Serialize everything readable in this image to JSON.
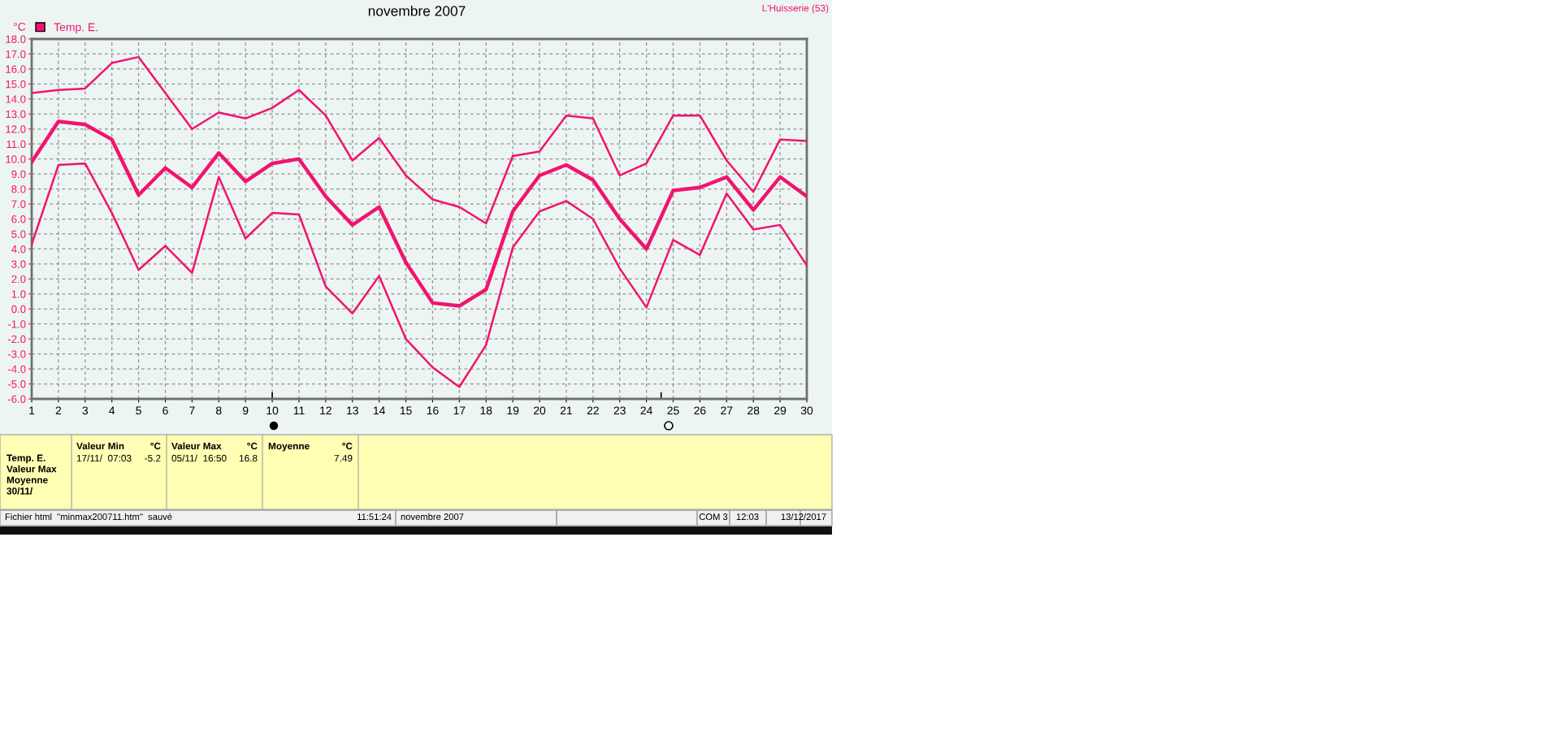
{
  "chart_data": {
    "type": "line",
    "title": "novembre 2007",
    "ylabel": "°C",
    "x": [
      1,
      2,
      3,
      4,
      5,
      6,
      7,
      8,
      9,
      10,
      11,
      12,
      13,
      14,
      15,
      16,
      17,
      18,
      19,
      20,
      21,
      22,
      23,
      24,
      25,
      26,
      27,
      28,
      29,
      30
    ],
    "series": [
      {
        "color": "#f2136f",
        "values": [
          14.4,
          14.6,
          14.7,
          16.4,
          16.8,
          14.4,
          12.0,
          13.1,
          12.7,
          13.4,
          14.6,
          12.9,
          9.9,
          11.4,
          8.9,
          7.3,
          6.8,
          5.7,
          10.2,
          10.5,
          12.9,
          12.7,
          8.9,
          9.7,
          12.9,
          12.9,
          9.9,
          7.8,
          11.3,
          11.2
        ]
      },
      {
        "name": "Temp. E.",
        "color": "#f2136f",
        "values": [
          9.8,
          12.5,
          12.3,
          11.3,
          7.6,
          9.4,
          8.1,
          10.4,
          8.5,
          9.7,
          10.0,
          7.5,
          5.6,
          6.8,
          3.1,
          0.4,
          0.2,
          1.3,
          6.5,
          8.9,
          9.6,
          8.6,
          6.0,
          4.0,
          7.9,
          8.1,
          8.8,
          6.6,
          8.8,
          7.5
        ]
      },
      {
        "color": "#f2136f",
        "values": [
          4.3,
          9.6,
          9.7,
          6.4,
          2.6,
          4.2,
          2.4,
          8.8,
          4.7,
          6.4,
          6.3,
          1.5,
          -0.3,
          2.2,
          -2.0,
          -3.9,
          -5.2,
          -2.4,
          4.1,
          6.5,
          7.2,
          6.0,
          2.7,
          0.1,
          4.6,
          3.6,
          7.7,
          5.3,
          5.6,
          2.9
        ]
      }
    ],
    "xlim": [
      1,
      30
    ],
    "xticks": [
      1,
      2,
      3,
      4,
      5,
      6,
      7,
      8,
      9,
      10,
      11,
      12,
      13,
      14,
      15,
      16,
      17,
      18,
      19,
      20,
      21,
      22,
      23,
      24,
      25,
      26,
      27,
      28,
      29,
      30
    ],
    "ylim": [
      -6,
      18
    ],
    "yticks": [
      {
        "value": -6,
        "label": "-6.0"
      },
      {
        "value": -5,
        "label": "-5.0"
      },
      {
        "value": -4,
        "label": "-4.0"
      },
      {
        "value": -3,
        "label": "-3.0"
      },
      {
        "value": -2,
        "label": "-2.0"
      },
      {
        "value": -1,
        "label": "-1.0"
      },
      {
        "value": 0,
        "label": "0.0"
      },
      {
        "value": 1,
        "label": "1.0"
      },
      {
        "value": 2,
        "label": "2.0"
      },
      {
        "value": 3,
        "label": "3.0"
      },
      {
        "value": 4,
        "label": "4.0"
      },
      {
        "value": 5,
        "label": "5.0"
      },
      {
        "value": 6,
        "label": "6.0"
      },
      {
        "value": 7,
        "label": "7.0"
      },
      {
        "value": 8,
        "label": "8.0"
      },
      {
        "value": 9,
        "label": "9.0"
      },
      {
        "value": 10,
        "label": "10.0"
      },
      {
        "value": 11,
        "label": "11.0"
      },
      {
        "value": 12,
        "label": "12.0"
      },
      {
        "value": 13,
        "label": "13.0"
      },
      {
        "value": 14,
        "label": "14.0"
      },
      {
        "value": 15,
        "label": "15.0"
      },
      {
        "value": 16,
        "label": "16.0"
      },
      {
        "value": 17,
        "label": "17.0"
      },
      {
        "value": 18,
        "label": "18.0"
      }
    ],
    "grid": true,
    "legend": "top left",
    "marker": "none",
    "line_style": "solid",
    "annotations": [
      "L'Huisserie (53)",
      "Temp. E.\nValeur Max\nMoyenne\n30/11/",
      "Valeur Min",
      "°C",
      "17/11/  07:03",
      "-5.2",
      "Valeur Max",
      "°C",
      "05/11/  16:50",
      "16.8",
      "Moyenne",
      "°C",
      "7.49",
      "Fichier html  \"minmax200711.htm\"  sauvé",
      "11:51:24",
      "novembre 2007",
      "COM 3",
      "12:03",
      "13/12/2017"
    ]
  }
}
